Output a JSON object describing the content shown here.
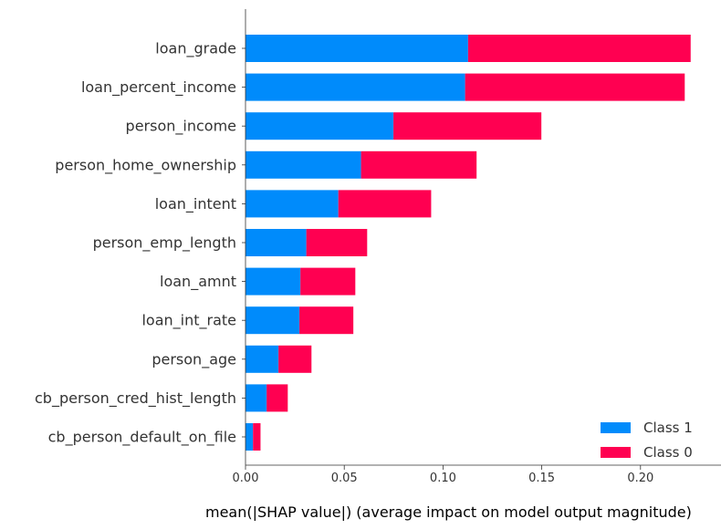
{
  "chart_data": {
    "type": "bar",
    "orientation": "horizontal",
    "stacked": true,
    "title": "",
    "xlabel": "mean(|SHAP value|) (average impact on model output magnitude)",
    "ylabel": "",
    "xlim": [
      0,
      0.23
    ],
    "xticks": [
      0.0,
      0.05,
      0.1,
      0.15,
      0.2
    ],
    "xtick_labels": [
      "0.00",
      "0.05",
      "0.10",
      "0.15",
      "0.20"
    ],
    "grid": false,
    "legend_position": "bottom-right",
    "categories": [
      "loan_grade",
      "loan_percent_income",
      "person_income",
      "person_home_ownership",
      "loan_intent",
      "person_emp_length",
      "loan_amnt",
      "loan_int_rate",
      "person_age",
      "cb_person_cred_hist_length",
      "cb_person_default_on_file"
    ],
    "series": [
      {
        "name": "Class 1",
        "color": "#008bfb",
        "values": [
          0.1127,
          0.1112,
          0.0749,
          0.0585,
          0.047,
          0.0308,
          0.0278,
          0.0273,
          0.0167,
          0.0107,
          0.0038
        ]
      },
      {
        "name": "Class 0",
        "color": "#ff0051",
        "values": [
          0.1127,
          0.1112,
          0.0749,
          0.0585,
          0.047,
          0.0308,
          0.0278,
          0.0273,
          0.0167,
          0.0107,
          0.0038
        ]
      }
    ]
  }
}
